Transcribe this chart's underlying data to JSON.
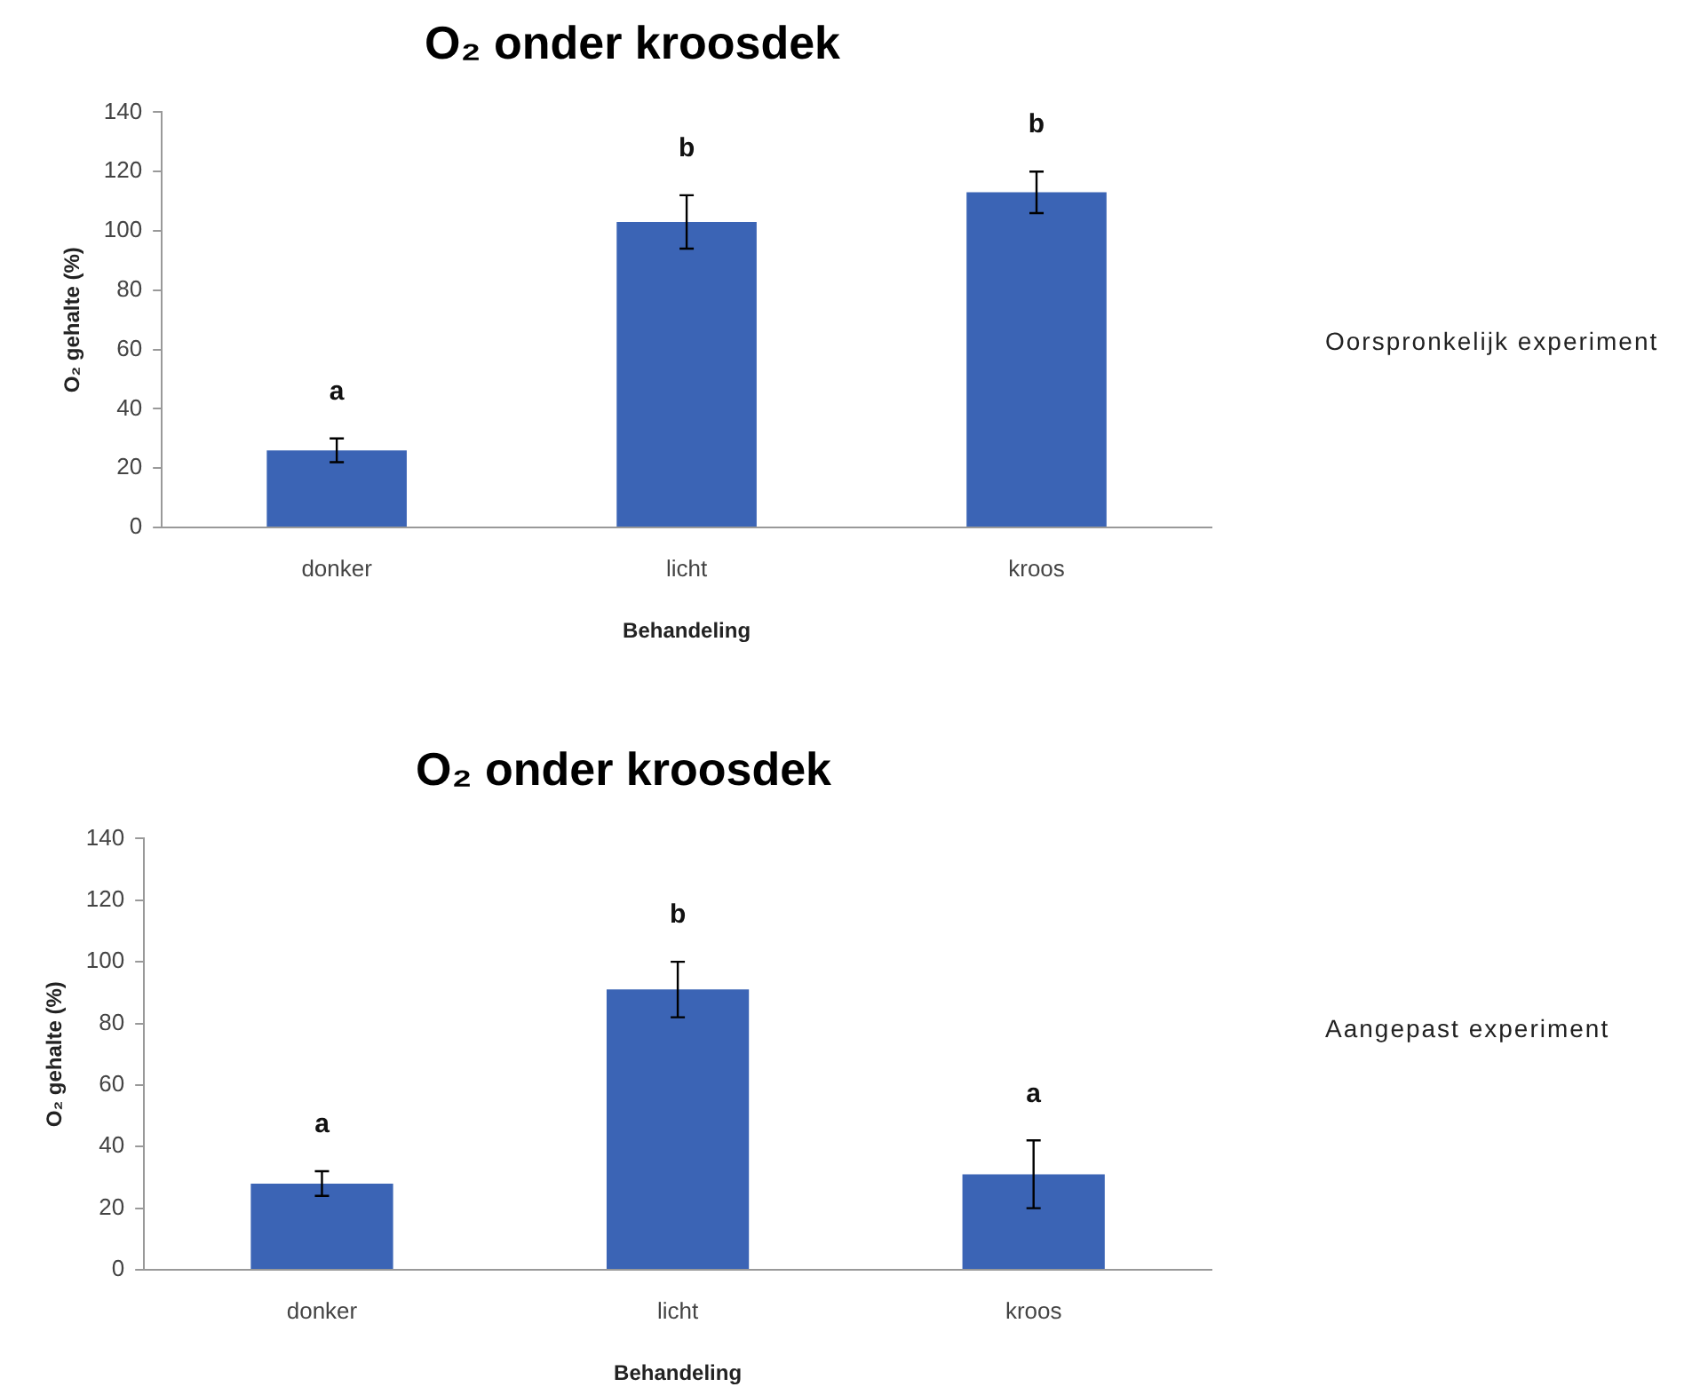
{
  "chart_data": [
    {
      "type": "bar",
      "title": "O₂ onder kroosdek",
      "xlabel": "Behandeling",
      "ylabel": "O₂ gehalte (%)",
      "categories": [
        "donker",
        "licht",
        "kroos"
      ],
      "values": [
        26,
        103,
        113
      ],
      "errors": [
        4,
        9,
        7
      ],
      "color": "#3b64b5",
      "ylim": [
        0,
        140
      ],
      "yticks": [
        0,
        20,
        40,
        60,
        80,
        100,
        120,
        140
      ],
      "grid": false,
      "legend": false,
      "annotations": [
        {
          "text": "a",
          "x": "donker",
          "y": 26
        },
        {
          "text": "b",
          "x": "licht",
          "y": 103
        },
        {
          "text": "b",
          "x": "kroos",
          "y": 113
        },
        "Oorspronkelijk experiment"
      ]
    },
    {
      "type": "bar",
      "title": "O₂ onder kroosdek",
      "xlabel": "Behandeling",
      "ylabel": "O₂ gehalte (%)",
      "categories": [
        "donker",
        "licht",
        "kroos"
      ],
      "values": [
        28,
        91,
        31
      ],
      "errors": [
        4,
        9,
        11
      ],
      "color": "#3b64b5",
      "ylim": [
        0,
        140
      ],
      "yticks": [
        0,
        20,
        40,
        60,
        80,
        100,
        120,
        140
      ],
      "grid": false,
      "legend": false,
      "annotations": [
        {
          "text": "a",
          "x": "donker",
          "y": 28
        },
        {
          "text": "b",
          "x": "licht",
          "y": 91
        },
        {
          "text": "a",
          "x": "kroos",
          "y": 31
        },
        "Aangepast experiment"
      ]
    }
  ]
}
